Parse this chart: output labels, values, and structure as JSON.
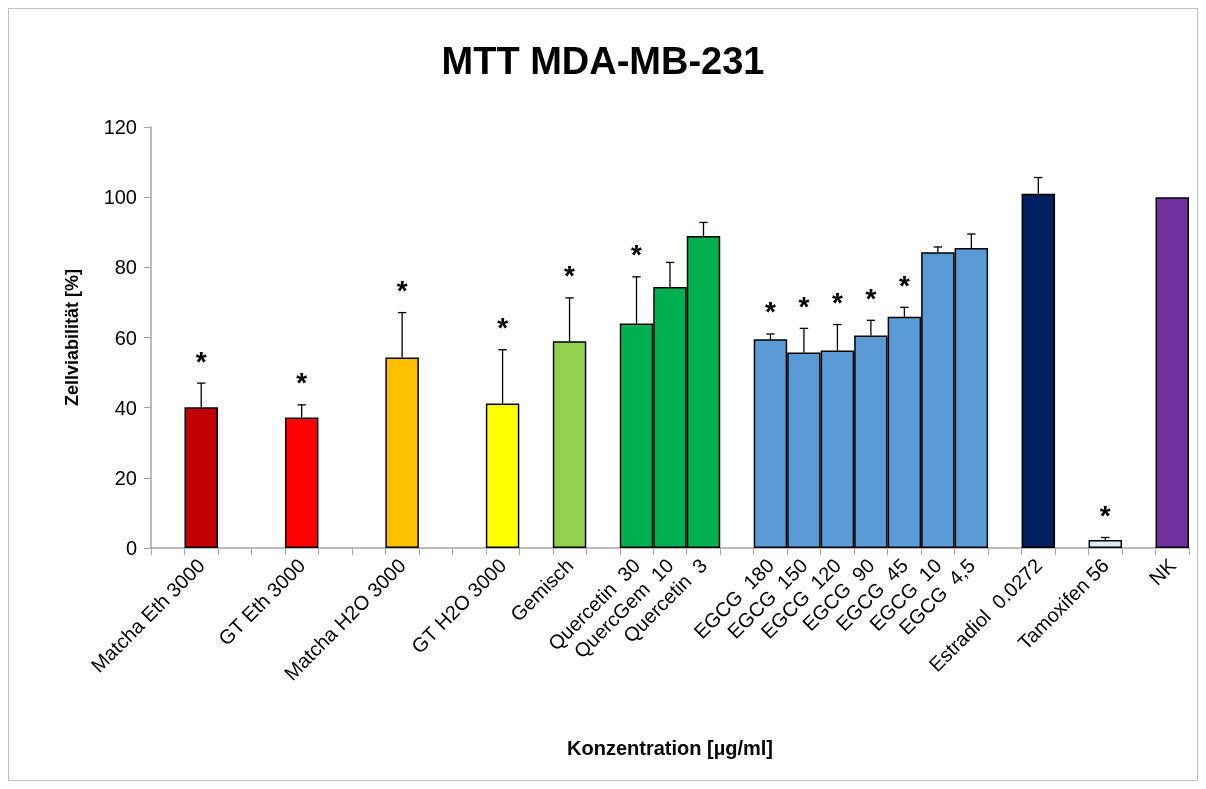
{
  "chart_data": {
    "type": "bar",
    "title": "MTT MDA-MB-231",
    "xlabel": "Konzentration [µg/ml]",
    "ylabel": "Zellviabilität [%]",
    "categories": [
      null,
      "Matcha Eth 3000",
      null,
      null,
      "GT Eth 3000",
      null,
      null,
      "Matcha H2O 3000",
      null,
      null,
      "GT H2O 3000",
      null,
      "Gemisch",
      null,
      "Quercetin  30",
      "QuercGem  10",
      "Quercetin  3",
      null,
      "EGCG  180",
      "EGCG  150",
      "EGCG  120",
      "EGCG  90",
      "EGCG  45",
      "EGCG  10",
      "EGCG  4,5",
      null,
      "Estradiol  0.0272",
      null,
      "Tamoxifen 56",
      null,
      "NK"
    ],
    "values": [
      null,
      40.1,
      null,
      null,
      37.2,
      null,
      null,
      54.3,
      null,
      null,
      41.2,
      null,
      58.9,
      null,
      64.0,
      74.4,
      88.9,
      null,
      59.5,
      55.7,
      56.3,
      60.6,
      65.9,
      84.3,
      85.5,
      null,
      101.0,
      null,
      2.3,
      null,
      100.0
    ],
    "colors": [
      null,
      "#c00000",
      null,
      null,
      "#ff0000",
      null,
      null,
      "#ffc000",
      null,
      null,
      "#ffff00",
      null,
      "#92d050",
      null,
      "#00b050",
      "#00b050",
      "#00b050",
      null,
      "#5b9bd5",
      "#5b9bd5",
      "#5b9bd5",
      "#5b9bd5",
      "#5b9bd5",
      "#5b9bd5",
      "#5b9bd5",
      null,
      "#002060",
      null,
      "#ddebf7",
      null,
      "#7030a0"
    ],
    "errors": [
      null,
      [
        40.1,
        47.0
      ],
      null,
      null,
      [
        37.2,
        40.8
      ],
      null,
      null,
      [
        54.3,
        67.1
      ],
      null,
      null,
      [
        41.2,
        56.5
      ],
      null,
      [
        58.9,
        71.3
      ],
      null,
      [
        64.0,
        77.3
      ],
      [
        74.4,
        81.4
      ],
      [
        88.9,
        92.8
      ],
      null,
      [
        59.5,
        61.0
      ],
      [
        55.7,
        62.6
      ],
      [
        56.3,
        63.7
      ],
      [
        60.6,
        64.9
      ],
      [
        65.9,
        68.6
      ],
      [
        84.3,
        85.8
      ],
      [
        85.5,
        89.5
      ],
      null,
      [
        101.0,
        105.6
      ],
      null,
      [
        2.3,
        3.0
      ],
      null,
      null
    ],
    "ylim": [
      0,
      120
    ],
    "yticks": [
      0,
      20,
      40,
      60,
      80,
      100,
      120
    ],
    "grid": false,
    "annotations": [
      {
        "text": "*",
        "x": "Matcha Eth 3000",
        "y": 47.0
      },
      {
        "text": "*",
        "x": "GT Eth 3000",
        "y": 40.8
      },
      {
        "text": "*",
        "x": "Matcha H2O 3000",
        "y": 67.1
      },
      {
        "text": "*",
        "x": "GT H2O 3000",
        "y": 56.5
      },
      {
        "text": "*",
        "x": "Gemisch",
        "y": 71.3
      },
      {
        "text": "*",
        "x": "Quercetin  30",
        "y": 77.3
      },
      {
        "text": "*",
        "x": "EGCG  180",
        "y": 61.0
      },
      {
        "text": "*",
        "x": "EGCG  150",
        "y": 62.6
      },
      {
        "text": "*",
        "x": "EGCG  120",
        "y": 63.7
      },
      {
        "text": "*",
        "x": "EGCG  90",
        "y": 64.9
      },
      {
        "text": "*",
        "x": "EGCG  45",
        "y": 68.6
      },
      {
        "text": "*",
        "x": "Tamoxifen 56",
        "y": 3.0
      }
    ]
  }
}
